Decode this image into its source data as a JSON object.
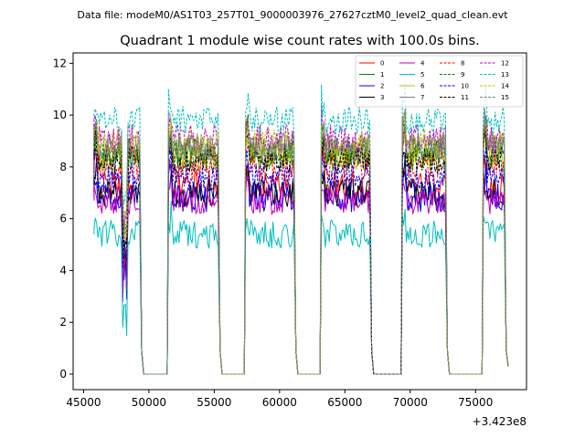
{
  "chart_data": {
    "type": "line",
    "suptitle": "Data file: modeM0/AS1T03_257T01_9000003976_27627cztM0_level2_quad_clean.evt",
    "title": "Quadrant 1 module wise count rates with 100.0s bins.",
    "xlabel": "",
    "ylabel": "",
    "x_offset_label": "+3.423e8",
    "xlim": [
      44200,
      78900
    ],
    "ylim": [
      -0.6,
      12.4
    ],
    "x_ticks": [
      45000,
      50000,
      55000,
      60000,
      65000,
      70000,
      75000
    ],
    "x_tick_labels": [
      "45000",
      "50000",
      "55000",
      "60000",
      "65000",
      "70000",
      "75000"
    ],
    "y_ticks": [
      0,
      2,
      4,
      6,
      8,
      10,
      12
    ],
    "y_tick_labels": [
      "0",
      "2",
      "4",
      "6",
      "8",
      "10",
      "12"
    ],
    "bin_size_s": 100,
    "segments": [
      [
        45800,
        49300
      ],
      [
        51500,
        55300
      ],
      [
        57400,
        61100
      ],
      [
        63200,
        66900
      ],
      [
        69400,
        72700
      ],
      [
        75600,
        77200
      ]
    ],
    "series": [
      {
        "name": "0",
        "color": "#ff0000",
        "dash": "solid",
        "level": 7.3
      },
      {
        "name": "1",
        "color": "#008000",
        "dash": "solid",
        "level": 8.6
      },
      {
        "name": "2",
        "color": "#0000ff",
        "dash": "solid",
        "level": 6.8
      },
      {
        "name": "3",
        "color": "#000000",
        "dash": "solid",
        "level": 7.0
      },
      {
        "name": "4",
        "color": "#bf00bf",
        "dash": "solid",
        "level": 6.7
      },
      {
        "name": "5",
        "color": "#00bfbf",
        "dash": "solid",
        "level": 5.4
      },
      {
        "name": "6",
        "color": "#bfbf00",
        "dash": "solid",
        "level": 8.4
      },
      {
        "name": "7",
        "color": "#808080",
        "dash": "solid",
        "level": 8.8
      },
      {
        "name": "8",
        "color": "#ff0000",
        "dash": "dashed",
        "level": 8.0
      },
      {
        "name": "9",
        "color": "#008000",
        "dash": "dashed",
        "level": 8.4
      },
      {
        "name": "10",
        "color": "#0000ff",
        "dash": "dashed",
        "level": 7.6
      },
      {
        "name": "11",
        "color": "#000000",
        "dash": "dashed",
        "level": 8.3
      },
      {
        "name": "12",
        "color": "#bf00bf",
        "dash": "dashed",
        "level": 9.1
      },
      {
        "name": "13",
        "color": "#00bfbf",
        "dash": "dashed",
        "level": 9.8
      },
      {
        "name": "14",
        "color": "#bfbf00",
        "dash": "dashed",
        "level": 8.9
      },
      {
        "name": "15",
        "color": "#808080",
        "dash": "dashed",
        "level": 8.7
      }
    ],
    "legend_position": "upper-right",
    "grid": false
  }
}
